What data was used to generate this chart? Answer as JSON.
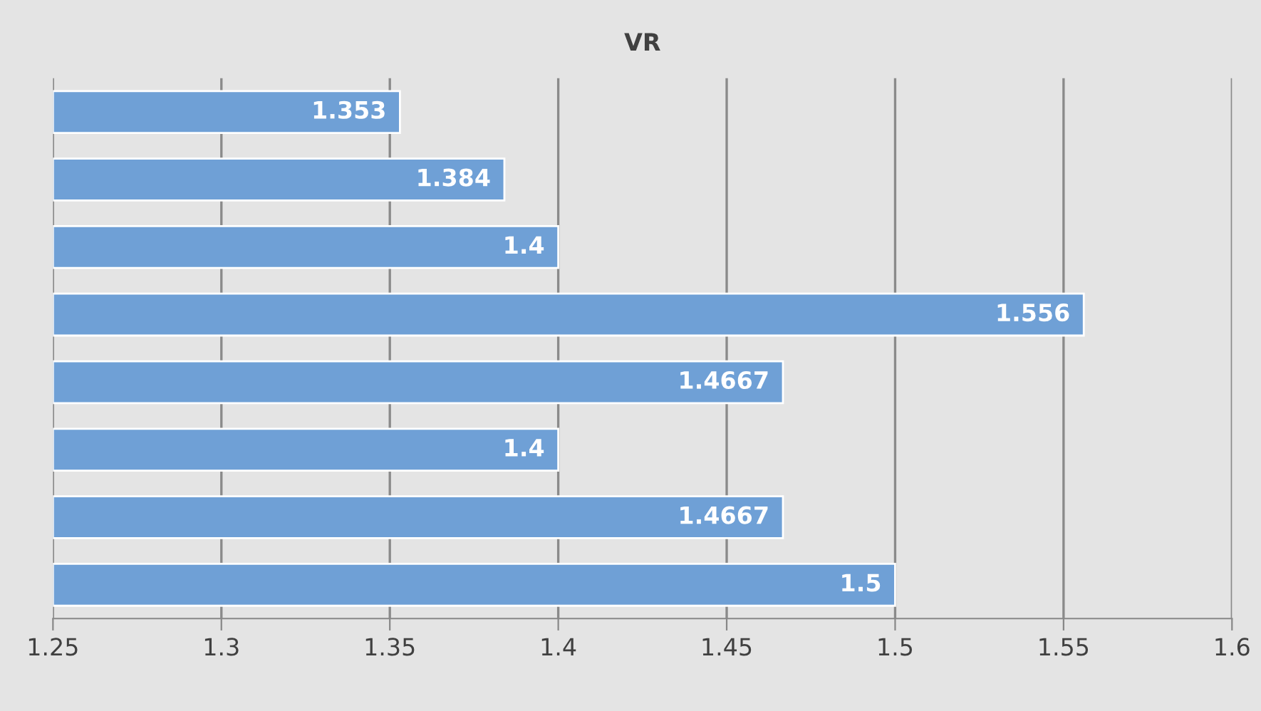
{
  "chart_data": {
    "type": "bar",
    "orientation": "horizontal",
    "title": "VR",
    "categories": [
      null,
      null,
      null,
      null,
      null,
      null,
      null,
      null
    ],
    "values": [
      1.353,
      1.384,
      1.4,
      1.556,
      1.4667,
      1.4,
      1.4667,
      1.5
    ],
    "color": "#6fa0d6",
    "xlim": [
      1.25,
      1.6
    ],
    "xticks": [
      1.25,
      1.3,
      1.35,
      1.4,
      1.45,
      1.5,
      1.55,
      1.6
    ],
    "grid": "x",
    "data_labels": true
  }
}
